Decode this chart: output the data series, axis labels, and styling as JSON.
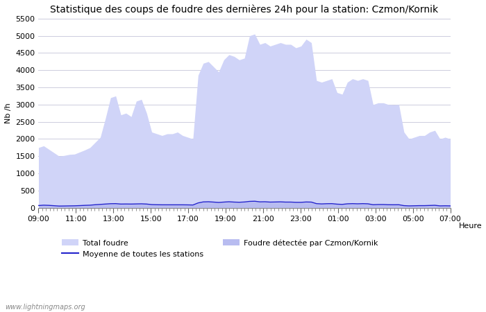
{
  "title": "Statistique des coups de foudre des dernières 24h pour la station: Czmon/Kornik",
  "ylabel": "Nb /h",
  "xlabel": "Heure",
  "watermark": "www.lightningmaps.org",
  "ylim": [
    0,
    5500
  ],
  "yticks": [
    0,
    500,
    1000,
    1500,
    2000,
    2500,
    3000,
    3500,
    4000,
    4500,
    5000,
    5500
  ],
  "xtick_labels": [
    "09:00",
    "11:00",
    "13:00",
    "15:00",
    "17:00",
    "19:00",
    "21:00",
    "23:00",
    "01:00",
    "03:00",
    "05:00",
    "07:00"
  ],
  "fill_color_total": "#d0d4f8",
  "fill_color_station": "#b8bcf0",
  "line_color_moyenne": "#2222cc",
  "background_color": "#ffffff",
  "grid_color": "#ccccdd",
  "total_foudre": [
    1750,
    1800,
    1700,
    1600,
    1500,
    1520,
    1550,
    1560,
    1620,
    1680,
    1750,
    1900,
    2050,
    2600,
    3200,
    3250,
    2700,
    2750,
    2650,
    3100,
    3150,
    2750,
    2200,
    2150,
    2100,
    2150,
    2150,
    2200,
    2100,
    2050,
    2000,
    3850,
    4200,
    4250,
    4100,
    3950,
    4300,
    4450,
    4400,
    4300,
    4350,
    5000,
    5050,
    4750,
    4800,
    4700,
    4750,
    4800,
    4750,
    4750,
    4650,
    4700,
    4900,
    4800,
    3700,
    3650,
    3700,
    3750,
    3350,
    3300,
    3650,
    3750,
    3700,
    3750,
    3700,
    3000,
    3050,
    3050,
    3000,
    2990,
    3000,
    2200,
    2000,
    2050,
    2100,
    2100,
    2200,
    2250,
    2000,
    2050,
    2000
  ],
  "station_foudre": [
    60,
    70,
    65,
    55,
    45,
    47,
    50,
    52,
    58,
    65,
    70,
    80,
    90,
    100,
    110,
    112,
    100,
    102,
    100,
    105,
    108,
    100,
    85,
    82,
    80,
    80,
    80,
    80,
    80,
    78,
    75,
    130,
    160,
    165,
    155,
    145,
    155,
    165,
    155,
    150,
    158,
    175,
    180,
    162,
    165,
    155,
    158,
    162,
    155,
    155,
    148,
    148,
    158,
    155,
    112,
    105,
    110,
    112,
    98,
    92,
    108,
    112,
    108,
    112,
    108,
    82,
    88,
    88,
    82,
    81,
    82,
    57,
    52,
    54,
    57,
    57,
    62,
    67,
    52,
    54,
    52
  ],
  "moyenne": [
    65,
    75,
    70,
    60,
    50,
    52,
    55,
    57,
    63,
    70,
    75,
    88,
    98,
    108,
    118,
    120,
    108,
    110,
    108,
    112,
    115,
    108,
    92,
    88,
    86,
    86,
    86,
    86,
    86,
    84,
    80,
    140,
    170,
    175,
    165,
    155,
    165,
    175,
    165,
    160,
    168,
    185,
    190,
    172,
    175,
    165,
    168,
    172,
    165,
    165,
    158,
    158,
    168,
    165,
    120,
    112,
    118,
    120,
    105,
    98,
    115,
    120,
    115,
    120,
    115,
    88,
    94,
    94,
    88,
    87,
    88,
    62,
    55,
    58,
    62,
    62,
    67,
    72,
    55,
    58,
    55
  ],
  "legend_entries": [
    "Total foudre",
    "Moyenne de toutes les stations",
    "Foudre détectée par Czmon/Kornik"
  ],
  "title_fontsize": 10,
  "axis_fontsize": 8,
  "tick_fontsize": 8
}
